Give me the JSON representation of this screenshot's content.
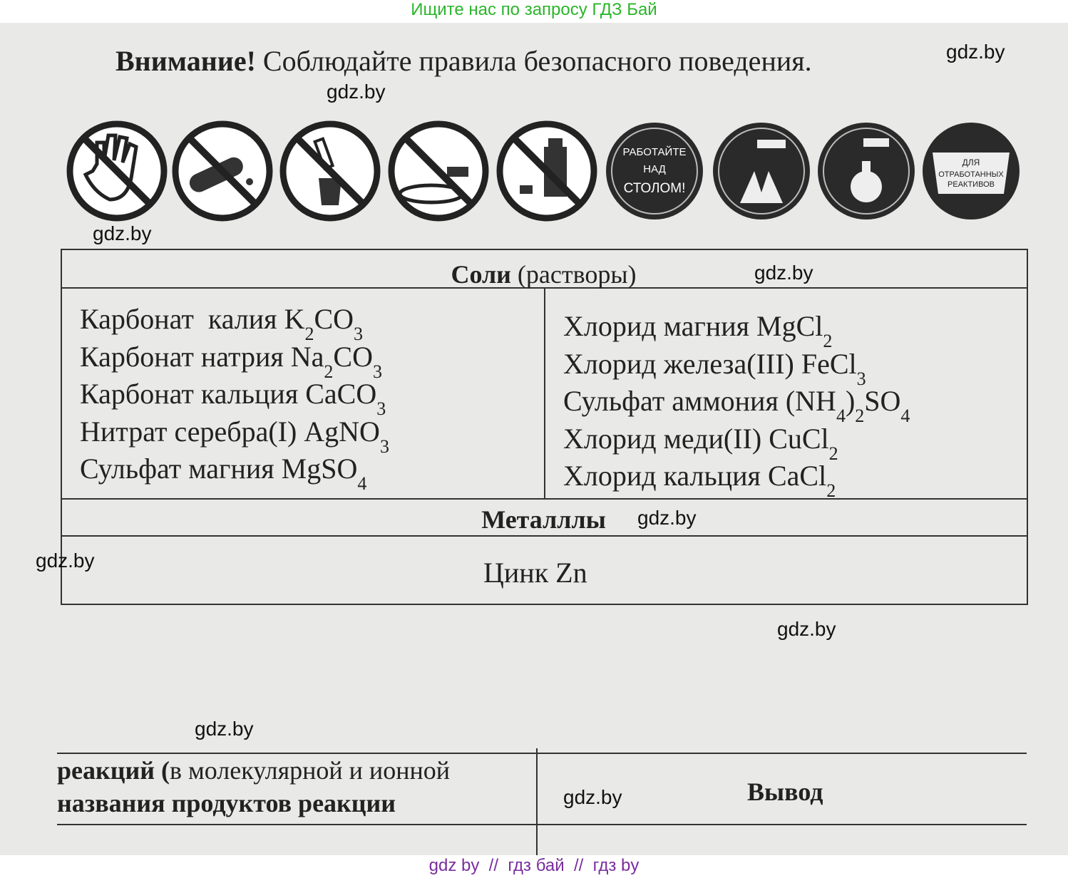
{
  "banner": "Ищите нас по запросу ГДЗ Бай",
  "warning": {
    "bold": "Внимание!",
    "text": "Соблюдайте правила безопасного поведения."
  },
  "icons": {
    "sign_work": [
      "РАБОТАЙТЕ",
      "НАД",
      "СТОЛОМ!"
    ],
    "sign_waste": [
      "ДЛЯ",
      "ОТРАБОТАННЫХ",
      "РЕАКТИВОВ"
    ]
  },
  "table": {
    "salts_header": {
      "bold": "Соли",
      "text": "(растворы)"
    },
    "left": [
      {
        "name": "Карбонат  калия",
        "formula": [
          "K",
          "2",
          "CO",
          "3"
        ]
      },
      {
        "name": "Карбонат натрия",
        "formula": [
          "Na",
          "2",
          "CO",
          "3"
        ]
      },
      {
        "name": "Карбонат кальция",
        "formula": [
          "CaCO",
          "3"
        ]
      },
      {
        "name": "Нитрат серебра(I)",
        "formula": [
          "AgNO",
          "3"
        ]
      },
      {
        "name": "Сульфат магния",
        "formula": [
          "MgSO",
          "4"
        ]
      }
    ],
    "right": [
      {
        "name": "Хлорид магния",
        "formula": [
          "MgCl",
          "2"
        ]
      },
      {
        "name": "Хлорид железа(III)",
        "formula": [
          "FeCl",
          "3"
        ]
      },
      {
        "name": "Сульфат аммония",
        "formula": [
          "(NH",
          "4",
          ")",
          "2",
          "SO",
          "4"
        ]
      },
      {
        "name": "Хлорид меди(II)",
        "formula": [
          "CuCl",
          "2"
        ]
      },
      {
        "name": "Хлорид кальция",
        "formula": [
          "CaCl",
          "2"
        ]
      }
    ],
    "metals_header": "Металллы",
    "metals": [
      {
        "name": "Цинк",
        "formula": [
          "Zn"
        ]
      }
    ]
  },
  "bottom": {
    "line1_bold": "реакций (",
    "line1": "в молекулярной и ионной",
    "line2": "названия продуктов реакции",
    "conclusion": "Вывод"
  },
  "watermarks": [
    "gdz.by",
    "gdz.by",
    "gdz.by",
    "gdz.by",
    "gdz.by",
    "gdz.by",
    "gdz.by",
    "gdz.by",
    "gdz.by"
  ],
  "footer": "gdz by  //  гдз бай  //  гдз by"
}
